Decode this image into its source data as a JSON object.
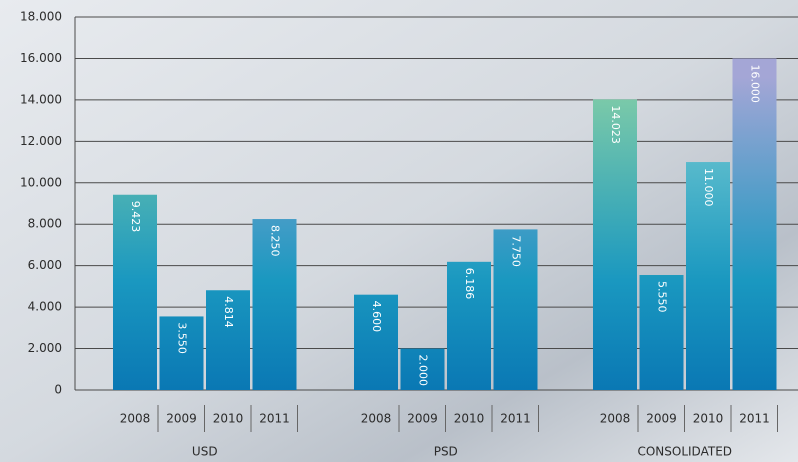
{
  "chart_data": {
    "type": "bar",
    "categories": [
      "USD",
      "PSD",
      "CONSOLIDATED"
    ],
    "series": [
      {
        "name": "2008",
        "color": "#86cfa6",
        "values": [
          9423,
          4600,
          14023
        ],
        "value_labels": [
          "9.423",
          "4.600",
          "14.023"
        ]
      },
      {
        "name": "2009",
        "color": "#bcd84a",
        "values": [
          3550,
          2000,
          5550
        ],
        "value_labels": [
          "3.550",
          "2.000",
          "5.550"
        ]
      },
      {
        "name": "2010",
        "color": "#84d2d4",
        "values": [
          4814,
          6186,
          11000
        ],
        "value_labels": [
          "4.814",
          "6.186",
          "11.000"
        ]
      },
      {
        "name": "2011",
        "color": "#a4a6d6",
        "values": [
          8250,
          7750,
          16000
        ],
        "value_labels": [
          "8.250",
          "7.750",
          "16.000"
        ]
      }
    ],
    "ylim": [
      0,
      18000
    ],
    "yticks": [
      0,
      {
        "value": 2000,
        "label": "2.000"
      },
      {
        "value": 4000,
        "label": "4.000"
      },
      {
        "value": 6000,
        "label": "6.000"
      },
      {
        "value": 8000,
        "label": "8.000"
      },
      {
        "value": 10000,
        "label": "10.000"
      },
      {
        "value": 12000,
        "label": "12.000"
      },
      {
        "value": 14000,
        "label": "14.000"
      },
      {
        "value": 16000,
        "label": "16.000"
      },
      {
        "value": 18000,
        "label": "18.000"
      }
    ],
    "grid": true
  }
}
